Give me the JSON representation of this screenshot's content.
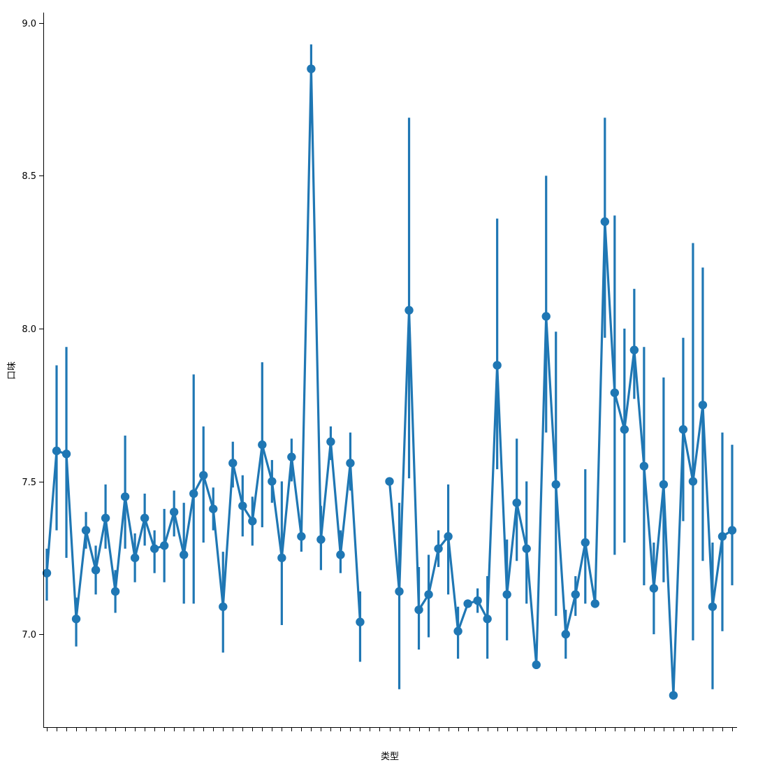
{
  "chart_data": {
    "type": "line",
    "title": "",
    "xlabel": "类型",
    "ylabel": "口味",
    "ylim": [
      6.696,
      9.034
    ],
    "y_ticks": [
      7.0,
      7.5,
      8.0,
      8.5,
      9.0
    ],
    "y_tick_labels": [
      "7.0",
      "7.5",
      "8.0",
      "8.5",
      "9.0"
    ],
    "grid": false,
    "color": "#1f77b4",
    "categories": [
      "",
      "",
      "",
      "",
      "",
      "",
      "",
      "",
      "",
      "",
      "",
      "",
      "",
      "",
      "",
      "",
      "",
      "",
      "",
      "",
      "",
      "",
      "",
      "",
      "",
      "",
      "",
      "",
      "",
      "",
      "",
      "",
      "",
      "",
      "",
      "",
      "",
      "",
      "",
      "",
      "",
      "",
      "",
      "",
      "",
      "",
      "",
      "",
      "",
      "",
      "",
      "",
      "",
      "",
      "",
      "",
      "",
      "",
      "",
      "",
      "",
      "",
      "",
      "",
      "",
      "",
      "",
      "",
      "",
      "",
      ""
    ],
    "series": [
      {
        "values": [
          7.2,
          7.6,
          7.59,
          7.05,
          7.34,
          7.21,
          7.38,
          7.14,
          7.45,
          7.25,
          7.38,
          7.28,
          7.29,
          7.4,
          7.26,
          7.46,
          7.52,
          7.41,
          7.09,
          7.56,
          7.42,
          7.37,
          7.62,
          7.5,
          7.25,
          7.58,
          7.32,
          8.85,
          7.31,
          7.63,
          7.26,
          7.56,
          7.04,
          null,
          null,
          7.5,
          7.14,
          8.06,
          7.08,
          7.13,
          7.28,
          7.32,
          7.01,
          7.1,
          7.11,
          7.05,
          7.88,
          7.13,
          7.43,
          7.28,
          6.9,
          8.04,
          7.49,
          7.0,
          7.13,
          7.3,
          7.1,
          8.35,
          7.79,
          7.67,
          7.93,
          7.55,
          7.15,
          7.49,
          6.8,
          7.67,
          7.5,
          7.75,
          7.09,
          7.32,
          7.34
        ],
        "ci_low": [
          7.11,
          7.34,
          7.25,
          6.96,
          7.28,
          7.13,
          7.28,
          7.07,
          7.28,
          7.17,
          7.29,
          7.2,
          7.17,
          7.32,
          7.1,
          7.1,
          7.3,
          7.34,
          6.94,
          7.48,
          7.32,
          7.29,
          7.35,
          7.43,
          7.03,
          7.5,
          7.27,
          8.77,
          7.21,
          7.57,
          7.2,
          7.47,
          6.91,
          null,
          null,
          null,
          6.82,
          7.51,
          6.95,
          6.99,
          7.22,
          7.13,
          6.92,
          null,
          7.07,
          6.92,
          7.54,
          6.98,
          7.24,
          7.1,
          null,
          7.66,
          7.06,
          6.92,
          7.06,
          7.1,
          null,
          7.97,
          7.26,
          7.3,
          7.77,
          7.16,
          7.0,
          7.17,
          null,
          7.37,
          6.98,
          7.24,
          6.82,
          7.01,
          7.16
        ],
        "ci_high": [
          7.28,
          7.88,
          7.94,
          7.12,
          7.4,
          7.29,
          7.49,
          7.21,
          7.65,
          7.33,
          7.46,
          7.34,
          7.41,
          7.47,
          7.43,
          7.85,
          7.68,
          7.48,
          7.27,
          7.63,
          7.52,
          7.45,
          7.89,
          7.57,
          7.5,
          7.64,
          7.37,
          8.93,
          7.42,
          7.68,
          7.34,
          7.66,
          7.14,
          null,
          null,
          null,
          7.43,
          8.69,
          7.22,
          7.26,
          7.34,
          7.49,
          7.09,
          null,
          7.15,
          7.19,
          8.36,
          7.31,
          7.64,
          7.5,
          null,
          8.5,
          7.99,
          7.08,
          7.19,
          7.54,
          null,
          8.69,
          8.37,
          8.0,
          8.13,
          7.94,
          7.3,
          7.84,
          null,
          7.97,
          8.28,
          8.2,
          7.3,
          7.66,
          7.62
        ]
      }
    ]
  }
}
